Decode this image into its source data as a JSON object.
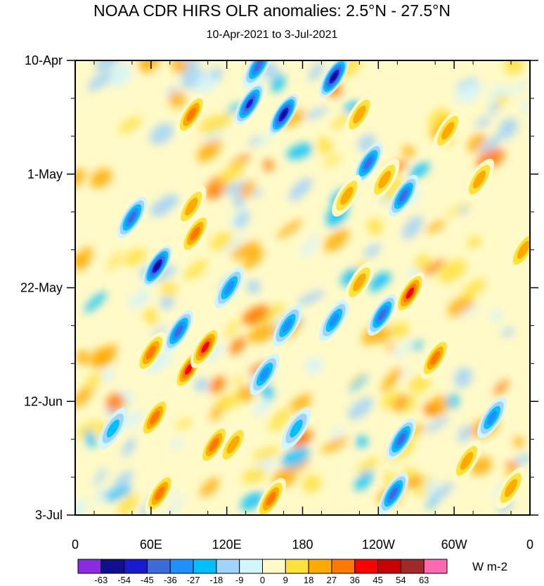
{
  "title": "NOAA CDR HIRS OLR anomalies: 2.5°N - 27.5°N",
  "subtitle": "10-Apr-2021 to 3-Jul-2021",
  "chart_data": {
    "type": "heatmap",
    "title": "NOAA CDR HIRS OLR anomalies: 2.5°N - 27.5°N",
    "subtitle": "10-Apr-2021 to 3-Jul-2021",
    "x_axis": {
      "ticks": [
        "0",
        "60E",
        "120E",
        "180",
        "120W",
        "60W",
        "0"
      ],
      "range": [
        "0",
        "0"
      ]
    },
    "y_axis": {
      "ticks": [
        "10-Apr",
        "1-May",
        "22-May",
        "12-Jun",
        "3-Jul"
      ],
      "range": [
        "10-Apr-2021",
        "3-Jul-2021"
      ]
    },
    "colorbar": {
      "levels": [
        "-63",
        "-54",
        "-45",
        "-36",
        "-27",
        "-18",
        "-9",
        "0",
        "9",
        "18",
        "27",
        "36",
        "45",
        "54",
        "63"
      ],
      "colors": [
        "#8a2be2",
        "#10108c",
        "#1a1ad2",
        "#3e6bdc",
        "#1e90ff",
        "#00bfff",
        "#a0d2fa",
        "#d2f5fa",
        "#fffac8",
        "#ffe13c",
        "#ffaa00",
        "#ff7800",
        "#ff0000",
        "#c80000",
        "#a02828",
        "#ff69b4"
      ],
      "units": "W m-2",
      "extends": "both"
    },
    "features": [
      {
        "lon": 45,
        "day": 29,
        "value": -45
      },
      {
        "lon": 65,
        "day": 38,
        "value": -63
      },
      {
        "lon": 82,
        "day": 50,
        "value": -45
      },
      {
        "lon": 138,
        "day": 8,
        "value": -54
      },
      {
        "lon": 145,
        "day": 1,
        "value": -45
      },
      {
        "lon": 165,
        "day": 10,
        "value": -63
      },
      {
        "lon": 205,
        "day": 3,
        "value": -63
      },
      {
        "lon": 232,
        "day": 19,
        "value": -45
      },
      {
        "lon": 260,
        "day": 25,
        "value": -45
      },
      {
        "lon": 122,
        "day": 42,
        "value": -36
      },
      {
        "lon": 168,
        "day": 49,
        "value": -36
      },
      {
        "lon": 205,
        "day": 48,
        "value": -36
      },
      {
        "lon": 243,
        "day": 47,
        "value": -45
      },
      {
        "lon": 150,
        "day": 58,
        "value": -36
      },
      {
        "lon": 175,
        "day": 68,
        "value": -27
      },
      {
        "lon": 258,
        "day": 70,
        "value": -45
      },
      {
        "lon": 252,
        "day": 80,
        "value": -45
      },
      {
        "lon": 330,
        "day": 66,
        "value": -36
      },
      {
        "lon": 30,
        "day": 68,
        "value": -27
      },
      {
        "lon": 92,
        "day": 10,
        "value": 36
      },
      {
        "lon": 92,
        "day": 27,
        "value": 27
      },
      {
        "lon": 95,
        "day": 32,
        "value": 36
      },
      {
        "lon": 90,
        "day": 57,
        "value": 45
      },
      {
        "lon": 103,
        "day": 53,
        "value": 45
      },
      {
        "lon": 60,
        "day": 54,
        "value": 36
      },
      {
        "lon": 63,
        "day": 66,
        "value": 36
      },
      {
        "lon": 67,
        "day": 80,
        "value": 36
      },
      {
        "lon": 110,
        "day": 71,
        "value": 36
      },
      {
        "lon": 125,
        "day": 71,
        "value": 27
      },
      {
        "lon": 155,
        "day": 81,
        "value": 36
      },
      {
        "lon": 225,
        "day": 10,
        "value": 27
      },
      {
        "lon": 215,
        "day": 25,
        "value": 27
      },
      {
        "lon": 245,
        "day": 22,
        "value": 27
      },
      {
        "lon": 225,
        "day": 41,
        "value": 27
      },
      {
        "lon": 265,
        "day": 43,
        "value": 45
      },
      {
        "lon": 285,
        "day": 55,
        "value": 36
      },
      {
        "lon": 295,
        "day": 13,
        "value": 27
      },
      {
        "lon": 320,
        "day": 22,
        "value": 27
      },
      {
        "lon": 355,
        "day": 35,
        "value": 27
      },
      {
        "lon": 310,
        "day": 74,
        "value": 27
      },
      {
        "lon": 345,
        "day": 79,
        "value": 27
      }
    ]
  }
}
